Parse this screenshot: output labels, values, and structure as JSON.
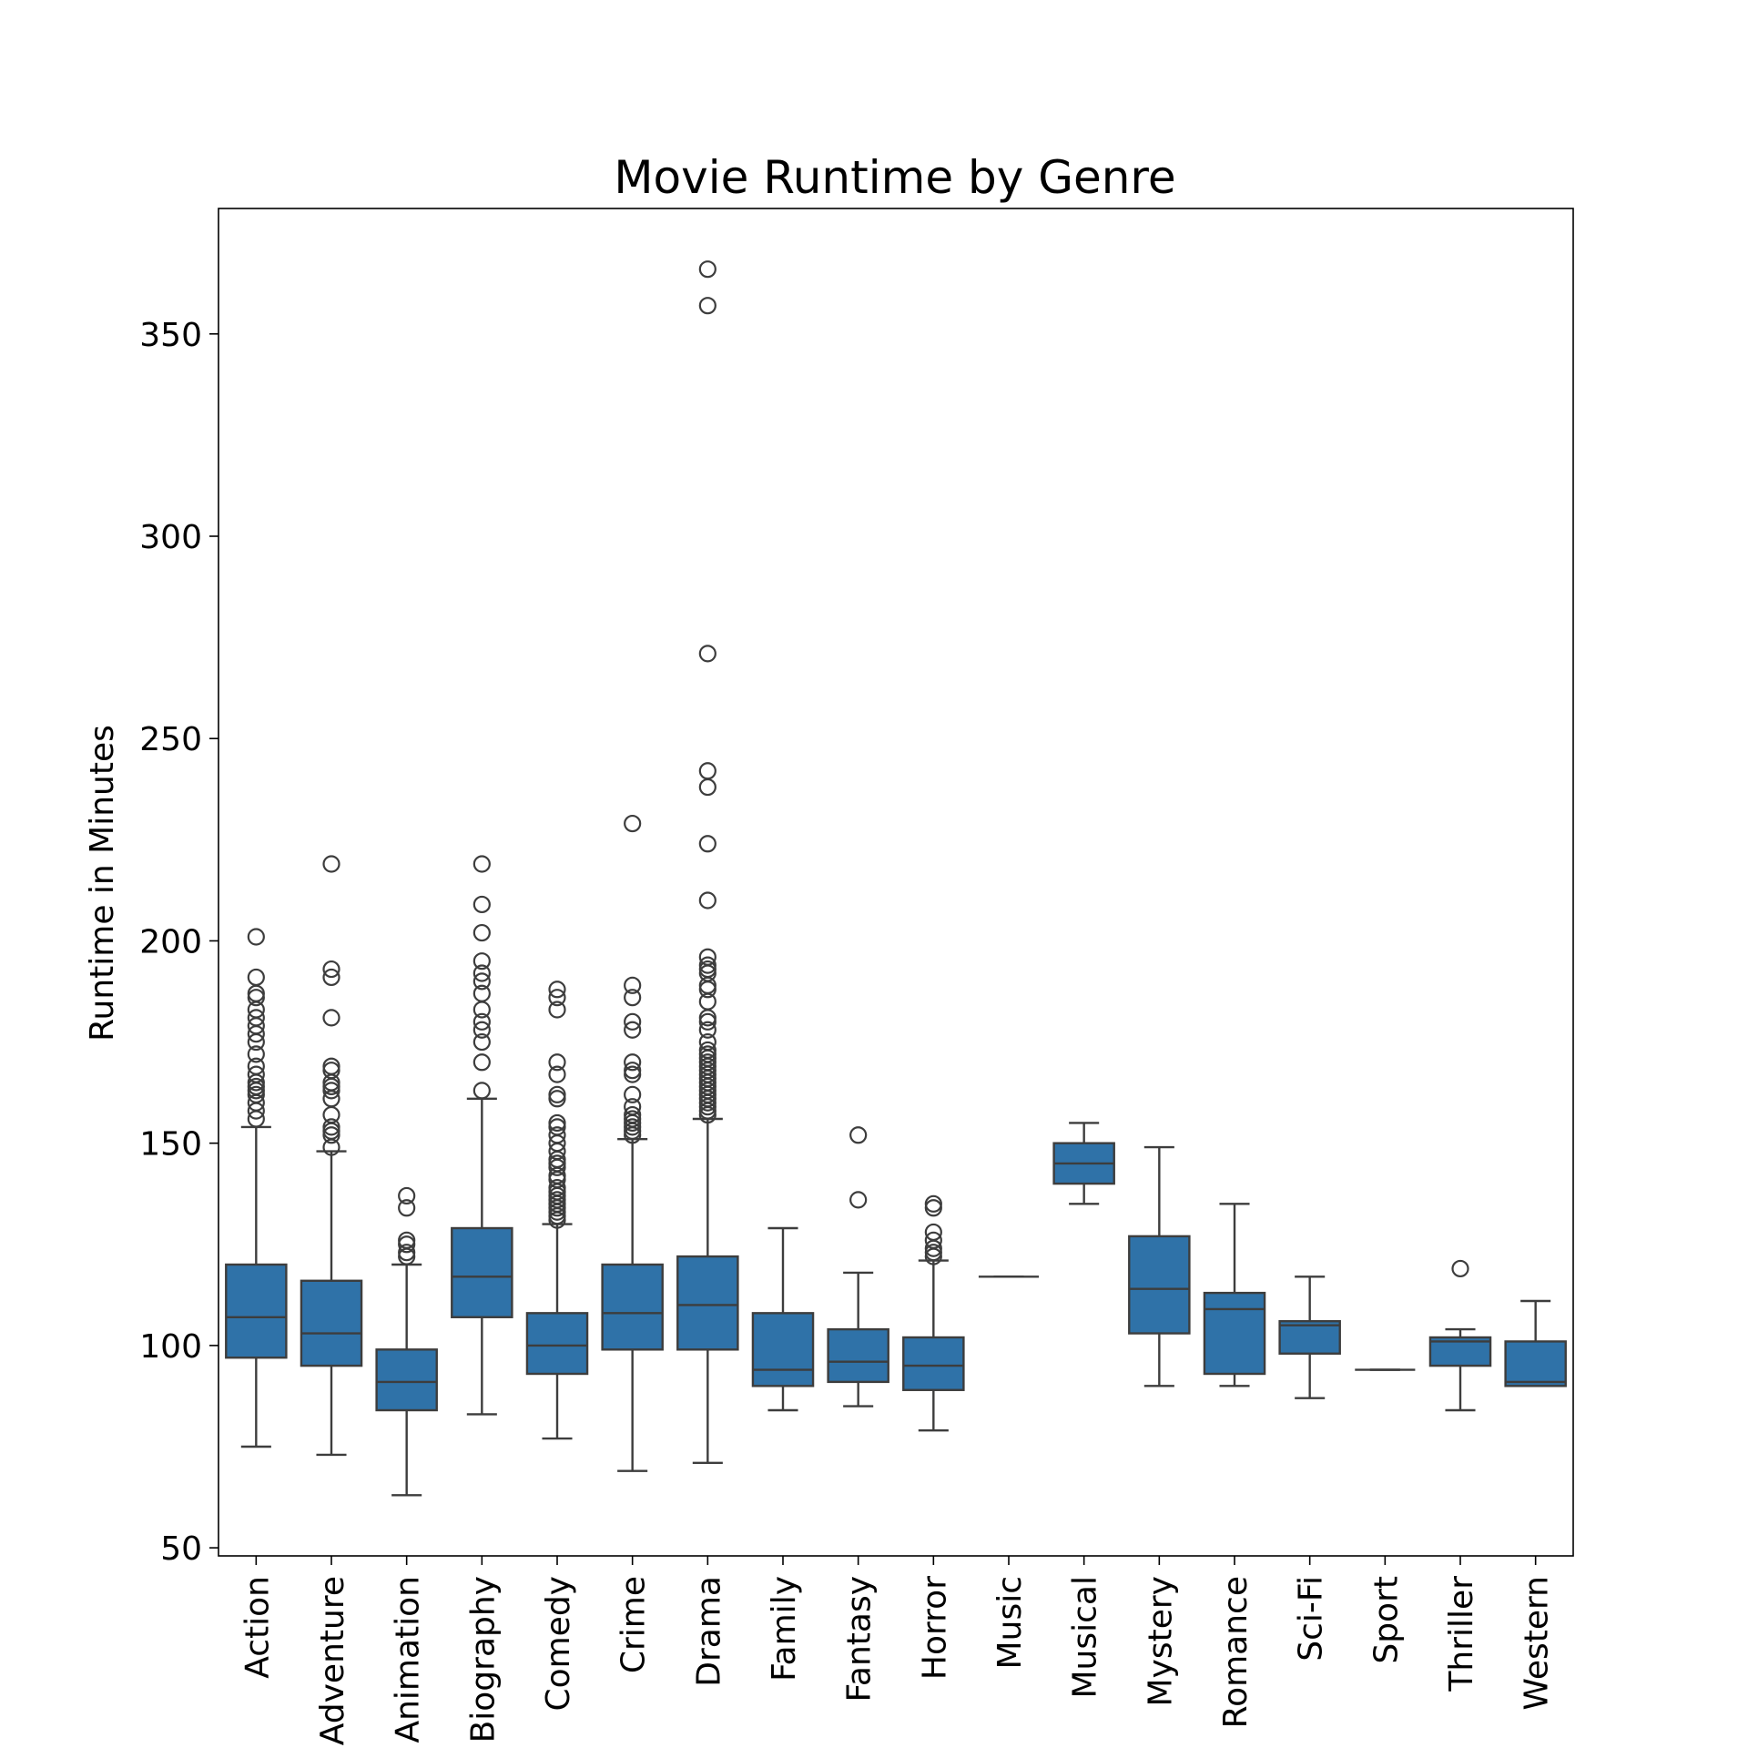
{
  "chart_data": {
    "type": "box",
    "title": "Movie Runtime by Genre",
    "xlabel": "",
    "ylabel": "Runtime in Minutes",
    "ylim": [
      48,
      381
    ],
    "yticks": [
      50,
      100,
      150,
      200,
      250,
      300,
      350
    ],
    "grid": false,
    "colors": {
      "box": "#2f72a8",
      "line": "#3d3d3d"
    },
    "categories": [
      "Action",
      "Adventure",
      "Animation",
      "Biography",
      "Comedy",
      "Crime",
      "Drama",
      "Family",
      "Fantasy",
      "Horror",
      "Music",
      "Musical",
      "Mystery",
      "Romance",
      "Sci-Fi",
      "Sport",
      "Thriller",
      "Western"
    ],
    "boxes": [
      {
        "min": 75,
        "q1": 97,
        "median": 107,
        "q3": 120,
        "max": 154,
        "fliers": [
          156,
          158,
          160,
          162,
          163,
          164,
          165,
          167,
          169,
          172,
          175,
          177,
          179,
          181,
          183,
          186,
          187,
          191,
          201
        ]
      },
      {
        "min": 73,
        "q1": 95,
        "median": 103,
        "q3": 116,
        "max": 148,
        "fliers": [
          149,
          152,
          153,
          154,
          157,
          161,
          163,
          164,
          165,
          168,
          169,
          181,
          191,
          193,
          219
        ]
      },
      {
        "min": 63,
        "q1": 84,
        "median": 91,
        "q3": 99,
        "max": 120,
        "fliers": [
          122,
          123,
          125,
          126,
          134,
          137
        ]
      },
      {
        "min": 83,
        "q1": 107,
        "median": 117,
        "q3": 129,
        "max": 161,
        "fliers": [
          163,
          170,
          175,
          178,
          180,
          183,
          187,
          190,
          192,
          195,
          202,
          209,
          219
        ]
      },
      {
        "min": 77,
        "q1": 93,
        "median": 100,
        "q3": 108,
        "max": 130,
        "fliers": [
          131,
          132,
          133,
          134,
          135,
          136,
          137,
          138,
          139,
          141,
          142,
          144,
          145,
          146,
          148,
          150,
          152,
          154,
          155,
          161,
          162,
          167,
          170,
          183,
          186,
          188
        ]
      },
      {
        "min": 69,
        "q1": 99,
        "median": 108,
        "q3": 120,
        "max": 151,
        "fliers": [
          152,
          153,
          154,
          155,
          156,
          157,
          159,
          162,
          167,
          168,
          170,
          178,
          180,
          186,
          189,
          229
        ]
      },
      {
        "min": 71,
        "q1": 99,
        "median": 110,
        "q3": 122,
        "max": 156,
        "fliers": [
          157,
          158,
          159,
          160,
          161,
          162,
          163,
          164,
          165,
          166,
          167,
          168,
          169,
          170,
          171,
          172,
          173,
          175,
          178,
          180,
          181,
          185,
          188,
          189,
          192,
          193,
          194,
          196,
          210,
          224,
          238,
          242,
          271,
          357,
          366
        ]
      },
      {
        "min": 84,
        "q1": 90,
        "median": 94,
        "q3": 108,
        "max": 129,
        "fliers": []
      },
      {
        "min": 85,
        "q1": 91,
        "median": 96,
        "q3": 104,
        "max": 118,
        "fliers": [
          136,
          152
        ]
      },
      {
        "min": 79,
        "q1": 89,
        "median": 95,
        "q3": 102,
        "max": 121,
        "fliers": [
          122,
          123,
          124,
          126,
          128,
          134,
          135
        ]
      },
      {
        "min": 117,
        "q1": 117,
        "median": 117,
        "q3": 117,
        "max": 117,
        "fliers": []
      },
      {
        "min": 135,
        "q1": 140,
        "median": 145,
        "q3": 150,
        "max": 155,
        "fliers": []
      },
      {
        "min": 90,
        "q1": 103,
        "median": 114,
        "q3": 127,
        "max": 149,
        "fliers": []
      },
      {
        "min": 90,
        "q1": 93,
        "median": 109,
        "q3": 113,
        "max": 135,
        "fliers": []
      },
      {
        "min": 87,
        "q1": 98,
        "median": 105,
        "q3": 106,
        "max": 117,
        "fliers": []
      },
      {
        "min": 94,
        "q1": 94,
        "median": 94,
        "q3": 94,
        "max": 94,
        "fliers": []
      },
      {
        "min": 84,
        "q1": 95,
        "median": 101,
        "q3": 102,
        "max": 104,
        "fliers": [
          119
        ]
      },
      {
        "min": 90,
        "q1": 90,
        "median": 91,
        "q3": 101,
        "max": 111,
        "fliers": []
      }
    ]
  }
}
